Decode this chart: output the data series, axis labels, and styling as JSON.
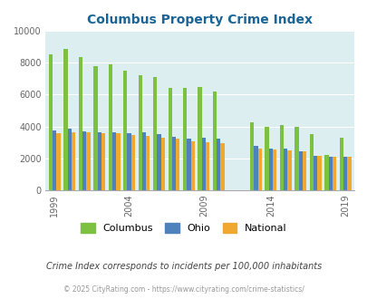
{
  "title": "Columbus Property Crime Index",
  "subtitle": "Crime Index corresponds to incidents per 100,000 inhabitants",
  "footer": "© 2025 CityRating.com - https://www.cityrating.com/crime-statistics/",
  "columbus_color": "#7dc142",
  "ohio_color": "#4f81bd",
  "national_color": "#f0a830",
  "bg_color": "#ddeef0",
  "title_color": "#1a6496",
  "subtitle_color": "#444444",
  "footer_color": "#999999",
  "ylim": [
    0,
    10000
  ],
  "yticks": [
    0,
    2000,
    4000,
    6000,
    8000,
    10000
  ],
  "years": [
    1999,
    2000,
    2001,
    2002,
    2003,
    2004,
    2005,
    2006,
    2007,
    2008,
    2009,
    2010,
    2013,
    2014,
    2015,
    2016,
    2017,
    2018,
    2019
  ],
  "columbus": [
    8550,
    8850,
    8350,
    7800,
    7900,
    7500,
    7200,
    7100,
    6400,
    6450,
    6500,
    6200,
    4250,
    3950,
    4100,
    4000,
    3500,
    2200,
    3300
  ],
  "ohio": [
    3750,
    3850,
    3700,
    3650,
    3650,
    3600,
    3650,
    3500,
    3350,
    3250,
    3300,
    3250,
    2750,
    2600,
    2600,
    2450,
    2150,
    2100,
    2100
  ],
  "national": [
    3600,
    3650,
    3650,
    3600,
    3550,
    3450,
    3400,
    3300,
    3250,
    3050,
    3000,
    2950,
    2600,
    2550,
    2500,
    2450,
    2150,
    2100,
    2100
  ]
}
